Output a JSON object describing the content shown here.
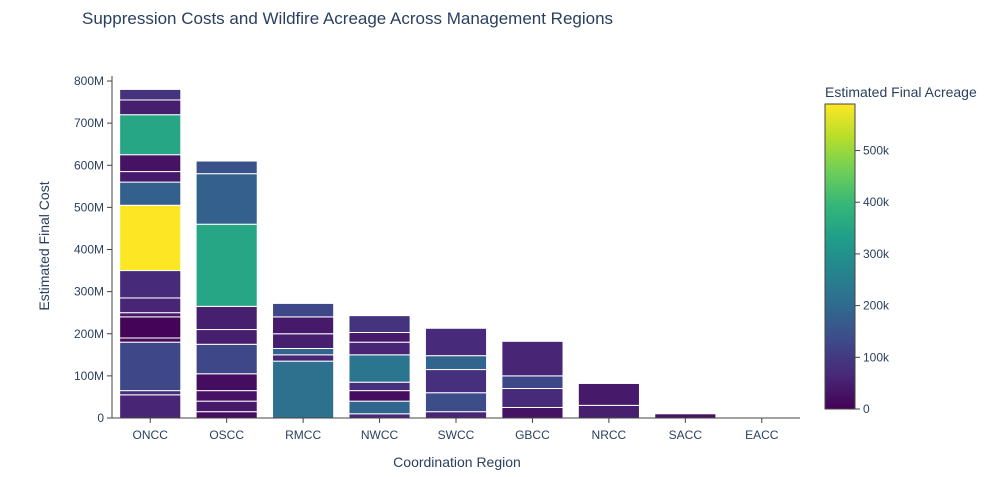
{
  "chart_data": {
    "type": "bar",
    "title": "Suppression Costs and Wildfire Acreage Across Management Regions",
    "xlabel": "Coordination Region",
    "ylabel": "Estimated Final Cost",
    "ylim": [
      0,
      800000000
    ],
    "yticks": [
      0,
      100000000,
      200000000,
      300000000,
      400000000,
      500000000,
      600000000,
      700000000,
      800000000
    ],
    "ytick_labels": [
      "0",
      "100M",
      "200M",
      "300M",
      "400M",
      "500M",
      "600M",
      "700M",
      "800M"
    ],
    "categories": [
      "ONCC",
      "OSCC",
      "RMCC",
      "NWCC",
      "SWCC",
      "GBCC",
      "NRCC",
      "SACC",
      "EACC"
    ],
    "totals": [
      780000000,
      610000000,
      272000000,
      243000000,
      213000000,
      182000000,
      82000000,
      10000000,
      1000000
    ],
    "colorbar": {
      "title": "Estimated Final Acreage",
      "colorscale": "Viridis",
      "range": [
        0,
        590000
      ],
      "ticks": [
        0,
        100000,
        200000,
        300000,
        400000,
        500000
      ],
      "tick_labels": [
        "0",
        "100k",
        "200k",
        "300k",
        "400k",
        "500k"
      ]
    },
    "stacks": {
      "ONCC": [
        {
          "cost": 55000000,
          "acreage": 60000
        },
        {
          "cost": 10000000,
          "acreage": 80000
        },
        {
          "cost": 115000000,
          "acreage": 130000
        },
        {
          "cost": 10000000,
          "acreage": 20000
        },
        {
          "cost": 50000000,
          "acreage": 5000
        },
        {
          "cost": 10000000,
          "acreage": 40000
        },
        {
          "cost": 35000000,
          "acreage": 60000
        },
        {
          "cost": 65000000,
          "acreage": 70000
        },
        {
          "cost": 155000000,
          "acreage": 590000
        },
        {
          "cost": 55000000,
          "acreage": 180000
        },
        {
          "cost": 25000000,
          "acreage": 40000
        },
        {
          "cost": 40000000,
          "acreage": 30000
        },
        {
          "cost": 95000000,
          "acreage": 350000
        },
        {
          "cost": 35000000,
          "acreage": 50000
        },
        {
          "cost": 25000000,
          "acreage": 90000
        }
      ],
      "OSCC": [
        {
          "cost": 15000000,
          "acreage": 20000
        },
        {
          "cost": 25000000,
          "acreage": 40000
        },
        {
          "cost": 25000000,
          "acreage": 30000
        },
        {
          "cost": 40000000,
          "acreage": 20000
        },
        {
          "cost": 70000000,
          "acreage": 130000
        },
        {
          "cost": 35000000,
          "acreage": 50000
        },
        {
          "cost": 55000000,
          "acreage": 50000
        },
        {
          "cost": 195000000,
          "acreage": 350000
        },
        {
          "cost": 120000000,
          "acreage": 180000
        },
        {
          "cost": 30000000,
          "acreage": 150000
        }
      ],
      "RMCC": [
        {
          "cost": 135000000,
          "acreage": 220000
        },
        {
          "cost": 15000000,
          "acreage": 60000
        },
        {
          "cost": 15000000,
          "acreage": 190000
        },
        {
          "cost": 35000000,
          "acreage": 50000
        },
        {
          "cost": 40000000,
          "acreage": 40000
        },
        {
          "cost": 32000000,
          "acreage": 130000
        }
      ],
      "NWCC": [
        {
          "cost": 10000000,
          "acreage": 70000
        },
        {
          "cost": 30000000,
          "acreage": 190000
        },
        {
          "cost": 25000000,
          "acreage": 20000
        },
        {
          "cost": 20000000,
          "acreage": 80000
        },
        {
          "cost": 65000000,
          "acreage": 230000
        },
        {
          "cost": 30000000,
          "acreage": 60000
        },
        {
          "cost": 23000000,
          "acreage": 40000
        },
        {
          "cost": 40000000,
          "acreage": 90000
        }
      ],
      "SWCC": [
        {
          "cost": 15000000,
          "acreage": 60000
        },
        {
          "cost": 45000000,
          "acreage": 140000
        },
        {
          "cost": 55000000,
          "acreage": 80000
        },
        {
          "cost": 33000000,
          "acreage": 190000
        },
        {
          "cost": 65000000,
          "acreage": 70000
        }
      ],
      "GBCC": [
        {
          "cost": 25000000,
          "acreage": 30000
        },
        {
          "cost": 45000000,
          "acreage": 70000
        },
        {
          "cost": 30000000,
          "acreage": 130000
        },
        {
          "cost": 82000000,
          "acreage": 60000
        }
      ],
      "NRCC": [
        {
          "cost": 30000000,
          "acreage": 50000
        },
        {
          "cost": 52000000,
          "acreage": 40000
        }
      ],
      "SACC": [
        {
          "cost": 10000000,
          "acreage": 30000
        }
      ],
      "EACC": [
        {
          "cost": 1000000,
          "acreage": 20000
        }
      ]
    }
  }
}
